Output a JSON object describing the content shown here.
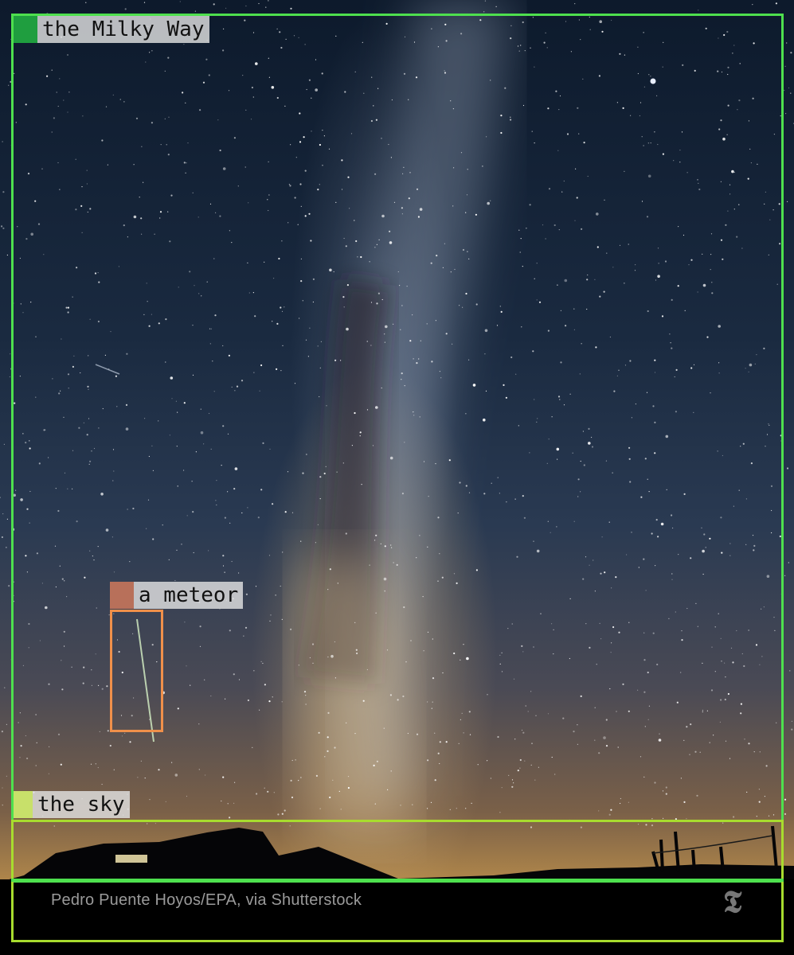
{
  "photo": {
    "credit": "Pedro Puente Hoyos/EPA, via Shutterstock",
    "publisher_logo": "𝕿"
  },
  "annotations": [
    {
      "label": "the Milky Way",
      "color": "#4ee04e",
      "tag_color": "#1f9e3f"
    },
    {
      "label": "a meteor",
      "color": "#f0904a",
      "tag_color": "#b8705a"
    },
    {
      "label": "the sky",
      "color": "#a8dc2e",
      "tag_color": "#c8e06a"
    }
  ]
}
